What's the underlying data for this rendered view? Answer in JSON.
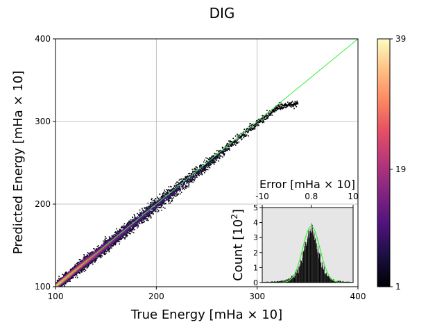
{
  "chart_data": [
    {
      "type": "heatmap",
      "title": "DIG",
      "xlabel": "True Energy [mHa × 10]",
      "ylabel": "Predicted Energy [mHa × 10]",
      "xlim": [
        100,
        400
      ],
      "ylim": [
        100,
        400
      ],
      "xticks": [
        100,
        200,
        300,
        400
      ],
      "yticks": [
        100,
        200,
        300,
        400
      ],
      "grid": true,
      "colormap": "magma",
      "colorbar": {
        "min": 1,
        "max": 39,
        "ticks": [
          1,
          19,
          39
        ]
      },
      "parity_line": {
        "color": "#33ee33",
        "from": [
          100,
          100
        ],
        "to": [
          400,
          400
        ]
      },
      "density_ridge": {
        "true_energy": [
          100,
          110,
          120,
          130,
          140,
          150,
          160,
          170,
          180,
          190,
          200,
          210,
          220,
          230,
          240,
          250,
          260,
          270,
          280,
          290,
          300,
          310,
          320,
          330,
          340
        ],
        "predicted_energy": [
          101,
          111,
          121,
          131,
          140,
          150,
          160,
          170,
          180,
          190,
          200,
          209,
          219,
          229,
          239,
          249,
          259,
          269,
          279,
          289,
          299,
          308,
          318,
          320,
          322
        ],
        "spread": [
          4,
          5,
          5,
          6,
          6,
          6,
          6,
          7,
          7,
          7,
          7,
          7,
          7,
          7,
          6,
          6,
          6,
          5,
          5,
          5,
          4,
          4,
          4,
          3,
          3
        ],
        "peak_count": [
          39,
          33,
          30,
          26,
          22,
          19,
          16,
          14,
          12,
          11,
          10,
          9,
          8,
          7,
          6,
          5,
          5,
          4,
          3,
          3,
          2,
          2,
          1,
          1,
          1
        ]
      }
    },
    {
      "type": "bar",
      "xlabel": "Error [mHa × 10]",
      "ylabel_text": "Count [10",
      "ylabel_sup": "2",
      "ylabel_close": "]",
      "xlim": [
        -10,
        10
      ],
      "ylim": [
        0,
        5
      ],
      "xticks": [
        -10,
        0.8,
        10
      ],
      "xtick_labels": [
        "-10",
        "0.8",
        "10"
      ],
      "yticks": [
        0,
        1,
        2,
        3,
        4,
        5
      ],
      "background": "#e6e6e6",
      "bar_color": "#000000",
      "bin_width": 0.1,
      "gaussian_fit": {
        "color": "#33ee33",
        "mean": 0.8,
        "sigma": 1.9,
        "peak": 3.75
      },
      "histogram_profile": {
        "x": [
          -10,
          -8,
          -6,
          -5,
          -4,
          -3,
          -2,
          -1,
          0,
          0.5,
          0.8,
          1,
          1.5,
          2,
          3,
          4,
          5,
          6,
          8,
          10
        ],
        "max": [
          0.05,
          0.08,
          0.12,
          0.2,
          0.35,
          0.6,
          1.2,
          2.2,
          3.4,
          3.9,
          4.0,
          3.9,
          3.5,
          2.8,
          1.6,
          0.8,
          0.35,
          0.2,
          0.1,
          0.05
        ],
        "min": [
          0.0,
          0.02,
          0.05,
          0.08,
          0.15,
          0.3,
          0.6,
          1.4,
          2.6,
          3.1,
          3.3,
          3.2,
          2.8,
          2.1,
          1.0,
          0.45,
          0.15,
          0.08,
          0.03,
          0.0
        ]
      }
    }
  ]
}
